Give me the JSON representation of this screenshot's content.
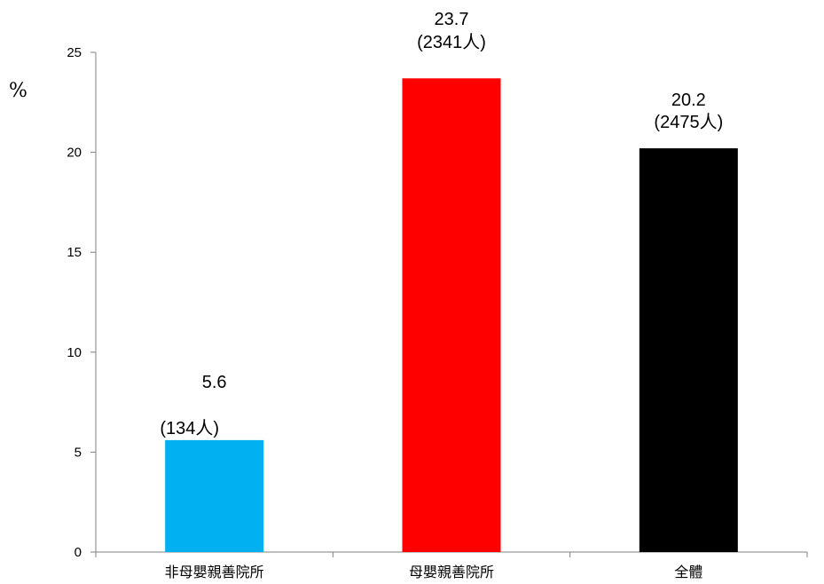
{
  "chart_data": {
    "type": "bar",
    "categories": [
      "非母嬰親善院所",
      "母嬰親善院所",
      "全體"
    ],
    "values": [
      5.6,
      23.7,
      20.2
    ],
    "value_labels": [
      "5.6",
      "23.7",
      "20.2"
    ],
    "count_labels": [
      "(134人)",
      "(2341人)",
      "(2475人)"
    ],
    "colors": [
      "#00b0f0",
      "#ff0000",
      "#000000"
    ],
    "ylabel": "%",
    "ylim": [
      0,
      25
    ],
    "yticks": [
      0,
      5,
      10,
      15,
      20,
      25
    ],
    "grid": false,
    "legend": "none"
  }
}
